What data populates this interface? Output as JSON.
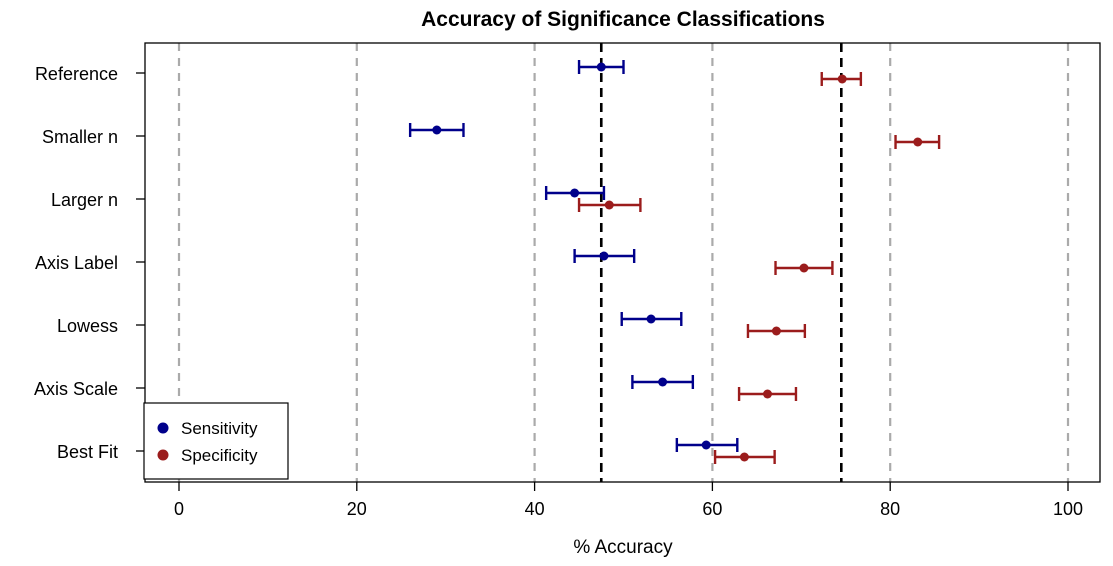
{
  "chart_data": {
    "type": "scatter",
    "title": "Accuracy of Significance Classifications",
    "xlabel": "% Accuracy",
    "ylabel": "",
    "xlim": [
      0,
      100
    ],
    "x_ticks": [
      "0",
      "20",
      "40",
      "60",
      "80",
      "100"
    ],
    "x_tick_values": [
      0,
      20,
      40,
      60,
      80,
      100
    ],
    "categories": [
      "Reference",
      "Smaller n",
      "Larger n",
      "Axis Label",
      "Lowess",
      "Axis Scale",
      "Best Fit"
    ],
    "grid": true,
    "reference_lines": [
      47.5,
      74.5
    ],
    "legend_position": "bottom-left",
    "series": [
      {
        "name": "Sensitivity",
        "color": "#00008B",
        "points": [
          {
            "category": "Reference",
            "estimate": 47.5,
            "low": 45.0,
            "high": 50.0
          },
          {
            "category": "Smaller n",
            "estimate": 29.0,
            "low": 26.0,
            "high": 32.0
          },
          {
            "category": "Larger n",
            "estimate": 44.5,
            "low": 41.3,
            "high": 47.8
          },
          {
            "category": "Axis Label",
            "estimate": 47.8,
            "low": 44.5,
            "high": 51.2
          },
          {
            "category": "Lowess",
            "estimate": 53.1,
            "low": 49.8,
            "high": 56.5
          },
          {
            "category": "Axis Scale",
            "estimate": 54.4,
            "low": 51.0,
            "high": 57.8
          },
          {
            "category": "Best Fit",
            "estimate": 59.3,
            "low": 56.0,
            "high": 62.8
          }
        ]
      },
      {
        "name": "Specificity",
        "color": "#9B1C1C",
        "points": [
          {
            "category": "Reference",
            "estimate": 74.6,
            "low": 72.3,
            "high": 76.7
          },
          {
            "category": "Smaller n",
            "estimate": 83.1,
            "low": 80.6,
            "high": 85.5
          },
          {
            "category": "Larger n",
            "estimate": 48.4,
            "low": 45.0,
            "high": 51.9
          },
          {
            "category": "Axis Label",
            "estimate": 70.3,
            "low": 67.1,
            "high": 73.5
          },
          {
            "category": "Lowess",
            "estimate": 67.2,
            "low": 64.0,
            "high": 70.4
          },
          {
            "category": "Axis Scale",
            "estimate": 66.2,
            "low": 63.0,
            "high": 69.4
          },
          {
            "category": "Best Fit",
            "estimate": 63.6,
            "low": 60.3,
            "high": 67.0
          }
        ]
      }
    ]
  }
}
